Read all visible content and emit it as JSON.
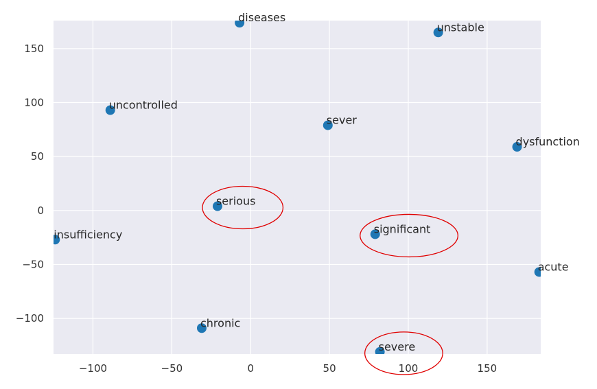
{
  "chart_data": {
    "type": "scatter",
    "title": "",
    "xlabel": "",
    "ylabel": "",
    "xlim": [
      -125,
      184
    ],
    "ylim": [
      -133,
      176
    ],
    "x_ticks": [
      -100,
      -50,
      0,
      50,
      100,
      150
    ],
    "y_ticks": [
      150,
      100,
      50,
      0,
      -50,
      -100
    ],
    "x_tick_labels": [
      "−100",
      "−50",
      "0",
      "50",
      "100",
      "150"
    ],
    "y_tick_labels": [
      "150",
      "100",
      "50",
      "0",
      "−50",
      "−100"
    ],
    "grid": true,
    "points": [
      {
        "label": "diseases",
        "x": -7,
        "y": 174
      },
      {
        "label": "unstable",
        "x": 119,
        "y": 165
      },
      {
        "label": "uncontrolled",
        "x": -89,
        "y": 93
      },
      {
        "label": "sever",
        "x": 49,
        "y": 79
      },
      {
        "label": "dysfunction",
        "x": 169,
        "y": 59
      },
      {
        "label": "serious",
        "x": -21,
        "y": 4
      },
      {
        "label": "significant",
        "x": 79,
        "y": -22
      },
      {
        "label": "insufficiency",
        "x": -124,
        "y": -27
      },
      {
        "label": "acute",
        "x": 183,
        "y": -57
      },
      {
        "label": "chronic",
        "x": -31,
        "y": -109
      },
      {
        "label": "severe",
        "x": 82,
        "y": -131
      }
    ],
    "highlighted": [
      "serious",
      "significant",
      "severe"
    ],
    "colors": {
      "plot_background": "#eaeaf2",
      "grid": "#ffffff",
      "marker": "#1f77b4",
      "highlight_ring": "#e00000"
    }
  }
}
